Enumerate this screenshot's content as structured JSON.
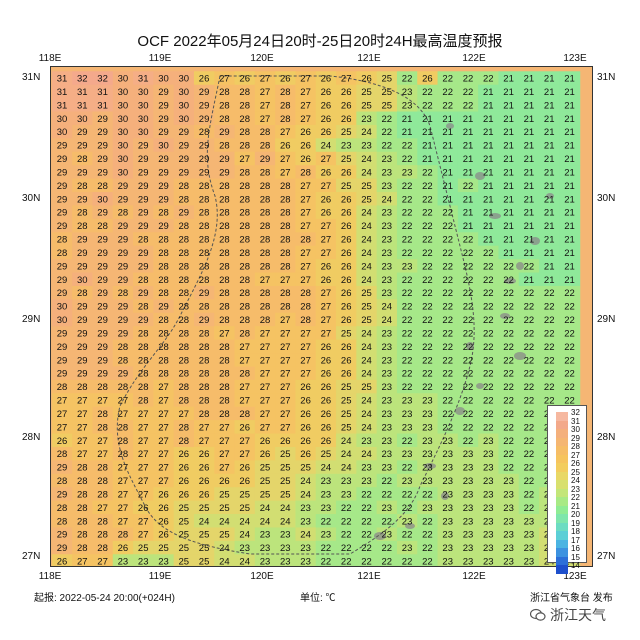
{
  "title": "OCF 2022年05月24日20时-25日20时24H最高温度预报",
  "map": {
    "lon_labels": [
      "118E",
      "119E",
      "120E",
      "121E",
      "122E",
      "123E"
    ],
    "lat_labels": [
      "31N",
      "30N",
      "29N",
      "28N",
      "27N"
    ],
    "lon_range": [
      118,
      123
    ],
    "lat_range": [
      27,
      31
    ],
    "grid_lons": [
      118.1,
      118.25,
      118.4,
      118.55,
      118.7,
      118.85,
      119.0,
      119.15,
      119.3,
      119.45,
      119.6,
      119.75,
      119.9,
      120.05,
      120.2,
      120.35,
      120.5,
      120.65,
      120.8,
      120.95,
      121.1,
      121.25,
      121.4,
      121.55,
      121.7,
      121.85,
      122.0,
      122.15,
      122.3,
      122.45,
      122.6,
      122.75,
      122.9
    ],
    "temperature_rows": [
      "31 32 32 30 31 30 30 26 27 26 27 26 27 26 27 26 25 22 26 22 22 22 21 21 21 21",
      "31 31 31 30 30 29 30 29 28 28 27 28 27 26 26 25 25 23 22 22 22 21 21 21 21 21",
      "31 31 31 30 30 29 30 29 28 28 27 28 27 26 26 25 25 23 22 22 22 21 21 21 21 21",
      "30 30 29 30 30 29 30 29 28 28 27 28 27 26 26 23 22 21 21 21 21 21 21 21 21 21",
      "30 29 29 30 30 29 29 28 29 28 28 27 26 26 25 24 22 21 21 21 21 21 21 21 21 21",
      "29 29 29 30 29 30 29 29 28 28 28 26 26 24 23 23 22 22 21 21 21 21 21 21 21 21",
      "29 28 29 30 29 29 29 29 29 27 29 27 26 27 25 24 23 22 21 21 21 21 21 21 21 21",
      "29 29 29 30 29 29 29 29 29 28 28 27 28 26 26 24 23 23 22 21 21 21 21 21 21 21",
      "29 28 28 29 29 29 28 28 28 28 28 28 27 27 25 25 23 22 22 21 22 21 21 21 21 21",
      "29 29 30 29 29 29 28 28 28 28 28 28 27 26 26 25 24 22 22 21 21 21 21 21 21 21",
      "29 28 29 28 29 28 29 28 28 28 28 28 27 26 26 24 23 22 22 22 21 21 21 21 21 21",
      "29 28 28 29 29 29 28 28 28 28 28 28 27 27 26 24 23 22 22 22 21 21 21 21 21 21",
      "28 29 29 29 28 28 28 28 28 28 28 28 28 27 26 24 23 22 22 22 22 21 21 21 21 21",
      "28 29 29 29 29 28 28 28 28 28 28 28 27 27 26 24 23 22 22 22 22 22 21 21 21 21",
      "29 29 29 29 29 28 28 28 28 28 28 28 27 26 26 24 23 23 22 22 22 22 22 22 21 21",
      "29 30 29 29 28 28 28 28 28 28 27 27 27 26 26 24 23 22 22 22 22 22 22 21 21 21",
      "29 28 29 28 29 28 28 29 28 28 28 28 28 27 26 25 23 22 22 22 22 22 22 22 22 22",
      "30 29 29 29 28 29 28 28 28 28 28 28 28 27 26 25 24 22 22 22 22 22 22 22 22 22",
      "30 29 29 29 29 28 28 29 28 28 28 27 28 27 26 25 24 22 22 22 22 22 22 22 22 22",
      "29 29 29 29 28 28 28 28 27 28 27 27 27 27 25 24 23 22 22 22 22 22 22 22 22 22",
      "29 29 29 28 28 28 28 28 28 27 27 27 27 26 26 24 23 22 22 22 22 22 22 22 22 22",
      "29 29 29 28 28 28 28 28 28 27 27 27 27 26 26 24 23 22 22 22 22 22 22 22 22 22",
      "29 29 29 29 28 28 28 28 28 28 27 27 27 26 26 24 23 22 22 22 22 22 22 22 22 22",
      "28 28 28 28 28 27 28 28 28 27 27 27 26 26 25 25 23 22 22 22 22 22 22 22 22 22",
      "27 27 27 27 28 27 28 28 28 27 27 27 26 26 25 24 23 23 23 22 22 22 22 22 22 22",
      "27 27 28 27 27 27 27 28 28 28 27 27 26 26 25 24 23 23 23 22 22 22 22 22 22 22",
      "27 27 28 28 27 27 28 27 27 26 27 27 26 26 25 24 23 23 23 22 22 22 22 22 22 22",
      "26 27 27 28 27 27 28 27 27 27 26 26 26 26 24 23 23 22 23 23 22 23 22 22 22 22",
      "28 27 27 28 27 27 26 26 27 27 26 25 26 25 24 24 23 23 23 23 23 23 22 22 22 22",
      "29 28 28 27 27 27 26 26 27 26 25 25 25 24 24 23 23 22 23 23 23 23 22 22 22 22",
      "28 28 28 27 27 27 26 26 26 26 25 25 24 23 23 23 22 23 23 23 23 23 23 22 22 22",
      "29 28 28 27 27 26 26 26 25 25 25 25 24 23 23 22 22 22 22 23 23 23 23 22 23 22",
      "28 28 27 27 26 26 25 25 25 25 24 24 23 23 22 22 23 22 23 23 23 23 23 22 23 23",
      "28 28 28 27 27 26 25 24 24 24 24 24 23 22 22 22 22 23 22 23 23 23 23 23 23 23",
      "29 28 28 28 27 26 25 25 25 24 23 23 24 23 22 22 23 22 22 23 23 23 23 23 24 23",
      "29 28 28 26 25 25 25 25 24 23 23 23 23 22 22 22 22 23 22 23 23 23 23 23 24 24",
      "26 27 27 23 23 23 25 25 24 24 23 23 23 22 22 22 22 22 22 23 23 23 23 23 24 24"
    ]
  },
  "legend": {
    "labels": [
      "32",
      "31",
      "30",
      "29",
      "28",
      "27",
      "26",
      "25",
      "24",
      "23",
      "22",
      "21",
      "20",
      "19",
      "18",
      "17",
      "16",
      "15",
      "14"
    ],
    "colors": [
      "#f6b8a0",
      "#f3a98a",
      "#f4b07c",
      "#f5b672",
      "#f6bd66",
      "#f6c45e",
      "#f3cd5e",
      "#e9d866",
      "#d8e06e",
      "#c3e679",
      "#a8ea85",
      "#8fec94",
      "#7ee6ac",
      "#6cdcc2",
      "#5ccfd6",
      "#4bb4e2",
      "#3c92e0",
      "#2c6fd8",
      "#1d4fcc"
    ]
  },
  "footer": {
    "issue": "起报: 2022-05-24 20:00(+024H)",
    "unit": "单位: ℃",
    "publisher": "浙江省气象台 发布",
    "watermark": "浙江天气"
  }
}
